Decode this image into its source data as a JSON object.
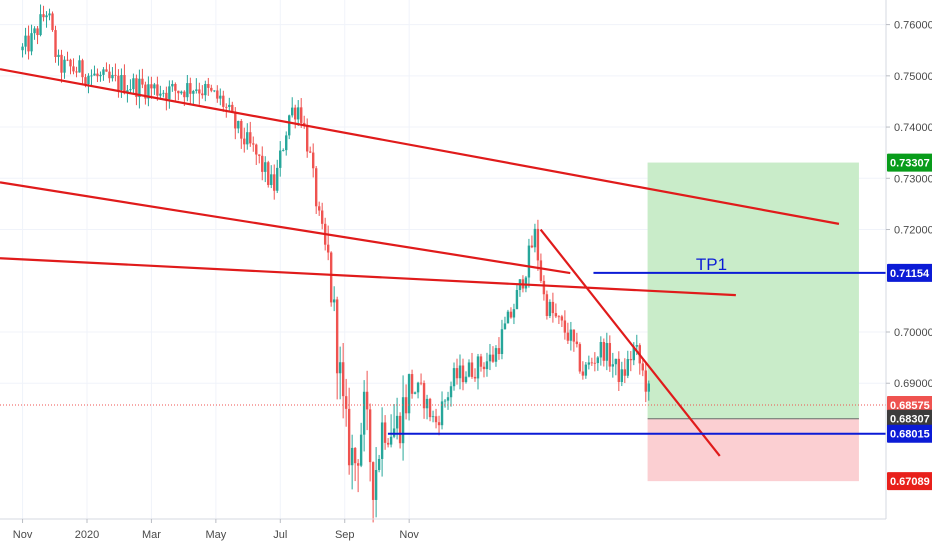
{
  "colors": {
    "candle_up": "#26a69a",
    "candle_down": "#ef5350",
    "trend_line": "#e01b1b",
    "level_line": "#0b1bd6",
    "profit_zone": "#c9ecc9",
    "loss_zone": "#fbcfd2",
    "grid": "#f0f3fa",
    "axis_text": "#4a4a4a"
  },
  "chart_data": {
    "type": "candlestick",
    "x_ticks": [
      "Nov",
      "2020",
      "Mar",
      "May",
      "Jul",
      "Sep",
      "Nov"
    ],
    "y_ticks": [
      0.76,
      0.75,
      0.74,
      0.73,
      0.72,
      0.7,
      0.69
    ],
    "y_tick_labels": [
      "0.76000",
      "0.75000",
      "0.74000",
      "0.73000",
      "0.72000",
      "0.70000",
      "0.69000"
    ],
    "ylim": [
      0.6635,
      0.7648
    ],
    "xlim": [
      -0.35,
      13.4
    ],
    "price_path": [
      [
        0.0,
        0.755
      ],
      [
        0.15,
        0.757
      ],
      [
        0.38,
        0.763
      ],
      [
        0.55,
        0.752
      ],
      [
        0.9,
        0.751
      ],
      [
        1.3,
        0.749
      ],
      [
        1.8,
        0.748
      ],
      [
        2.3,
        0.747
      ],
      [
        2.7,
        0.748
      ],
      [
        3.1,
        0.745
      ],
      [
        3.35,
        0.739
      ],
      [
        3.6,
        0.735
      ],
      [
        3.9,
        0.728
      ],
      [
        4.15,
        0.743
      ],
      [
        4.3,
        0.744
      ],
      [
        4.45,
        0.735
      ],
      [
        4.6,
        0.722
      ],
      [
        4.75,
        0.713
      ],
      [
        4.9,
        0.695
      ],
      [
        5.0,
        0.681
      ],
      [
        5.15,
        0.674
      ],
      [
        5.3,
        0.684
      ],
      [
        5.45,
        0.671
      ],
      [
        5.6,
        0.683
      ],
      [
        5.8,
        0.681
      ],
      [
        6.0,
        0.689
      ],
      [
        6.2,
        0.688
      ],
      [
        6.4,
        0.682
      ],
      [
        6.7,
        0.691
      ],
      [
        7.0,
        0.693
      ],
      [
        7.3,
        0.695
      ],
      [
        7.6,
        0.704
      ],
      [
        7.8,
        0.712
      ],
      [
        7.95,
        0.719
      ],
      [
        8.1,
        0.706
      ],
      [
        8.3,
        0.702
      ],
      [
        8.5,
        0.699
      ],
      [
        8.7,
        0.692
      ],
      [
        9.0,
        0.697
      ],
      [
        9.3,
        0.691
      ],
      [
        9.5,
        0.697
      ],
      [
        9.75,
        0.6868
      ]
    ],
    "trend_lines": [
      {
        "from": [
          -0.35,
          0.7513
        ],
        "to": [
          12.67,
          0.7211
        ]
      },
      {
        "from": [
          -0.35,
          0.7292
        ],
        "to": [
          8.5,
          0.7115
        ]
      },
      {
        "from": [
          -0.35,
          0.7144
        ],
        "to": [
          11.07,
          0.7072
        ]
      },
      {
        "from": [
          8.04,
          0.72
        ],
        "to": [
          10.82,
          0.6758
        ]
      }
    ],
    "levels": [
      {
        "name": "TP1",
        "value": 0.71154,
        "from": 8.86,
        "to": 13.4
      },
      {
        "value": 0.68015,
        "from": 5.67,
        "to": 13.4
      }
    ],
    "position": {
      "entry": 0.68307,
      "take_profit": 0.73307,
      "stop_loss": 0.67089,
      "x_from": 9.7,
      "x_to": 12.98
    },
    "current_price": 0.68575,
    "price_labels": [
      {
        "value": 0.73307,
        "label": "0.73307",
        "color": "#089c1a"
      },
      {
        "value": 0.71154,
        "label": "0.71154",
        "color": "#0b1bd6"
      },
      {
        "value": 0.68575,
        "label": "0.68575",
        "color": "#ef5350"
      },
      {
        "value": 0.68307,
        "label": "0.68307",
        "color": "#3c3c3c"
      },
      {
        "value": 0.68015,
        "label": "0.68015",
        "color": "#0b1bd6"
      },
      {
        "value": 0.67089,
        "label": "0.67089",
        "color": "#e8201b"
      }
    ],
    "annotations": [
      {
        "text": "TP1",
        "x": 10.45,
        "y": 0.71154
      }
    ]
  }
}
